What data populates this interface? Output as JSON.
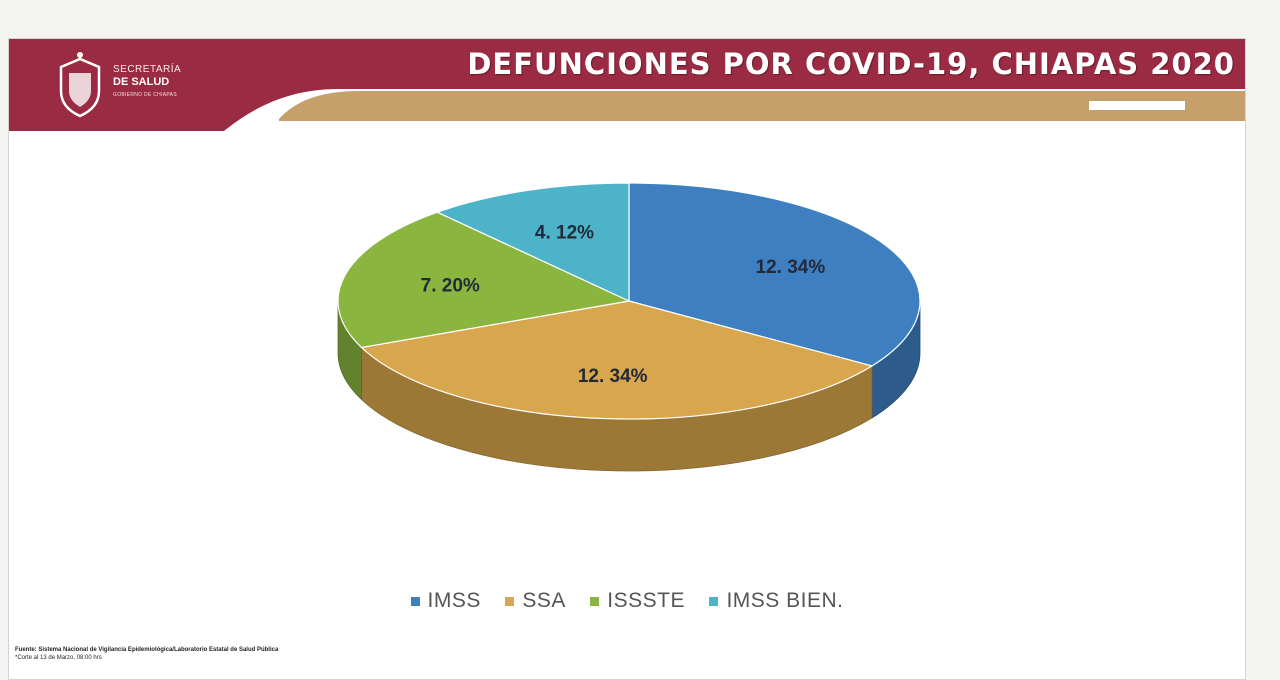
{
  "header": {
    "title": "DEFUNCIONES POR COVID-19, CHIAPAS 2020",
    "logo_line1": "SECRETARÍA",
    "logo_line2": "DE SALUD",
    "logo_line3": "GOBIERNO DE CHIAPAS",
    "colors": {
      "maroon": "#9a2b42",
      "gold": "#c6a06a"
    }
  },
  "chart_data": {
    "type": "pie",
    "title": "",
    "categories": [
      "IMSS",
      "SSA",
      "ISSSTE",
      "IMSS BIEN."
    ],
    "labels": [
      "12. 34%",
      "12. 34%",
      "7. 20%",
      "4. 12%"
    ],
    "values": [
      12.34,
      12.34,
      7.2,
      4.12
    ],
    "colors": [
      "#3e7fc1",
      "#d8a64c",
      "#8ab53e",
      "#4cb3c8"
    ],
    "legend_position": "bottom",
    "style": "3d"
  },
  "footer": {
    "source_label": "Fuente:",
    "source_text": "Sistema Nacional de Vigilancia Epidemiológica/Laboratorio Estatal de Salud Pública",
    "cutoff": "*Corte al 13 de Marzo, 08:00 hrs"
  }
}
